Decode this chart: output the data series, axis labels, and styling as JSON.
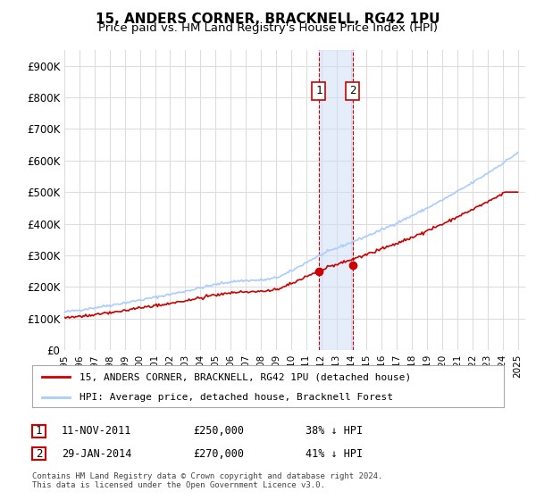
{
  "title": "15, ANDERS CORNER, BRACKNELL, RG42 1PU",
  "subtitle": "Price paid vs. HM Land Registry's House Price Index (HPI)",
  "ylim": [
    0,
    950000
  ],
  "yticks": [
    0,
    100000,
    200000,
    300000,
    400000,
    500000,
    600000,
    700000,
    800000,
    900000
  ],
  "ytick_labels": [
    "£0",
    "£100K",
    "£200K",
    "£300K",
    "£400K",
    "£500K",
    "£600K",
    "£700K",
    "£800K",
    "£900K"
  ],
  "hpi_color": "#aaccff",
  "price_color": "#cc0000",
  "shading_color": "#ccddf8",
  "marker1_price": 250000,
  "marker1_label": "11-NOV-2011",
  "marker1_value_label": "£250,000",
  "marker1_pct": "38% ↓ HPI",
  "marker2_price": 270000,
  "marker2_label": "29-JAN-2014",
  "marker2_value_label": "£270,000",
  "marker2_pct": "41% ↓ HPI",
  "legend_line1": "15, ANDERS CORNER, BRACKNELL, RG42 1PU (detached house)",
  "legend_line2": "HPI: Average price, detached house, Bracknell Forest",
  "footnote1": "Contains HM Land Registry data © Crown copyright and database right 2024.",
  "footnote2": "This data is licensed under the Open Government Licence v3.0.",
  "background_color": "#ffffff",
  "grid_color": "#dddddd",
  "title_fontsize": 11,
  "subtitle_fontsize": 9.5
}
